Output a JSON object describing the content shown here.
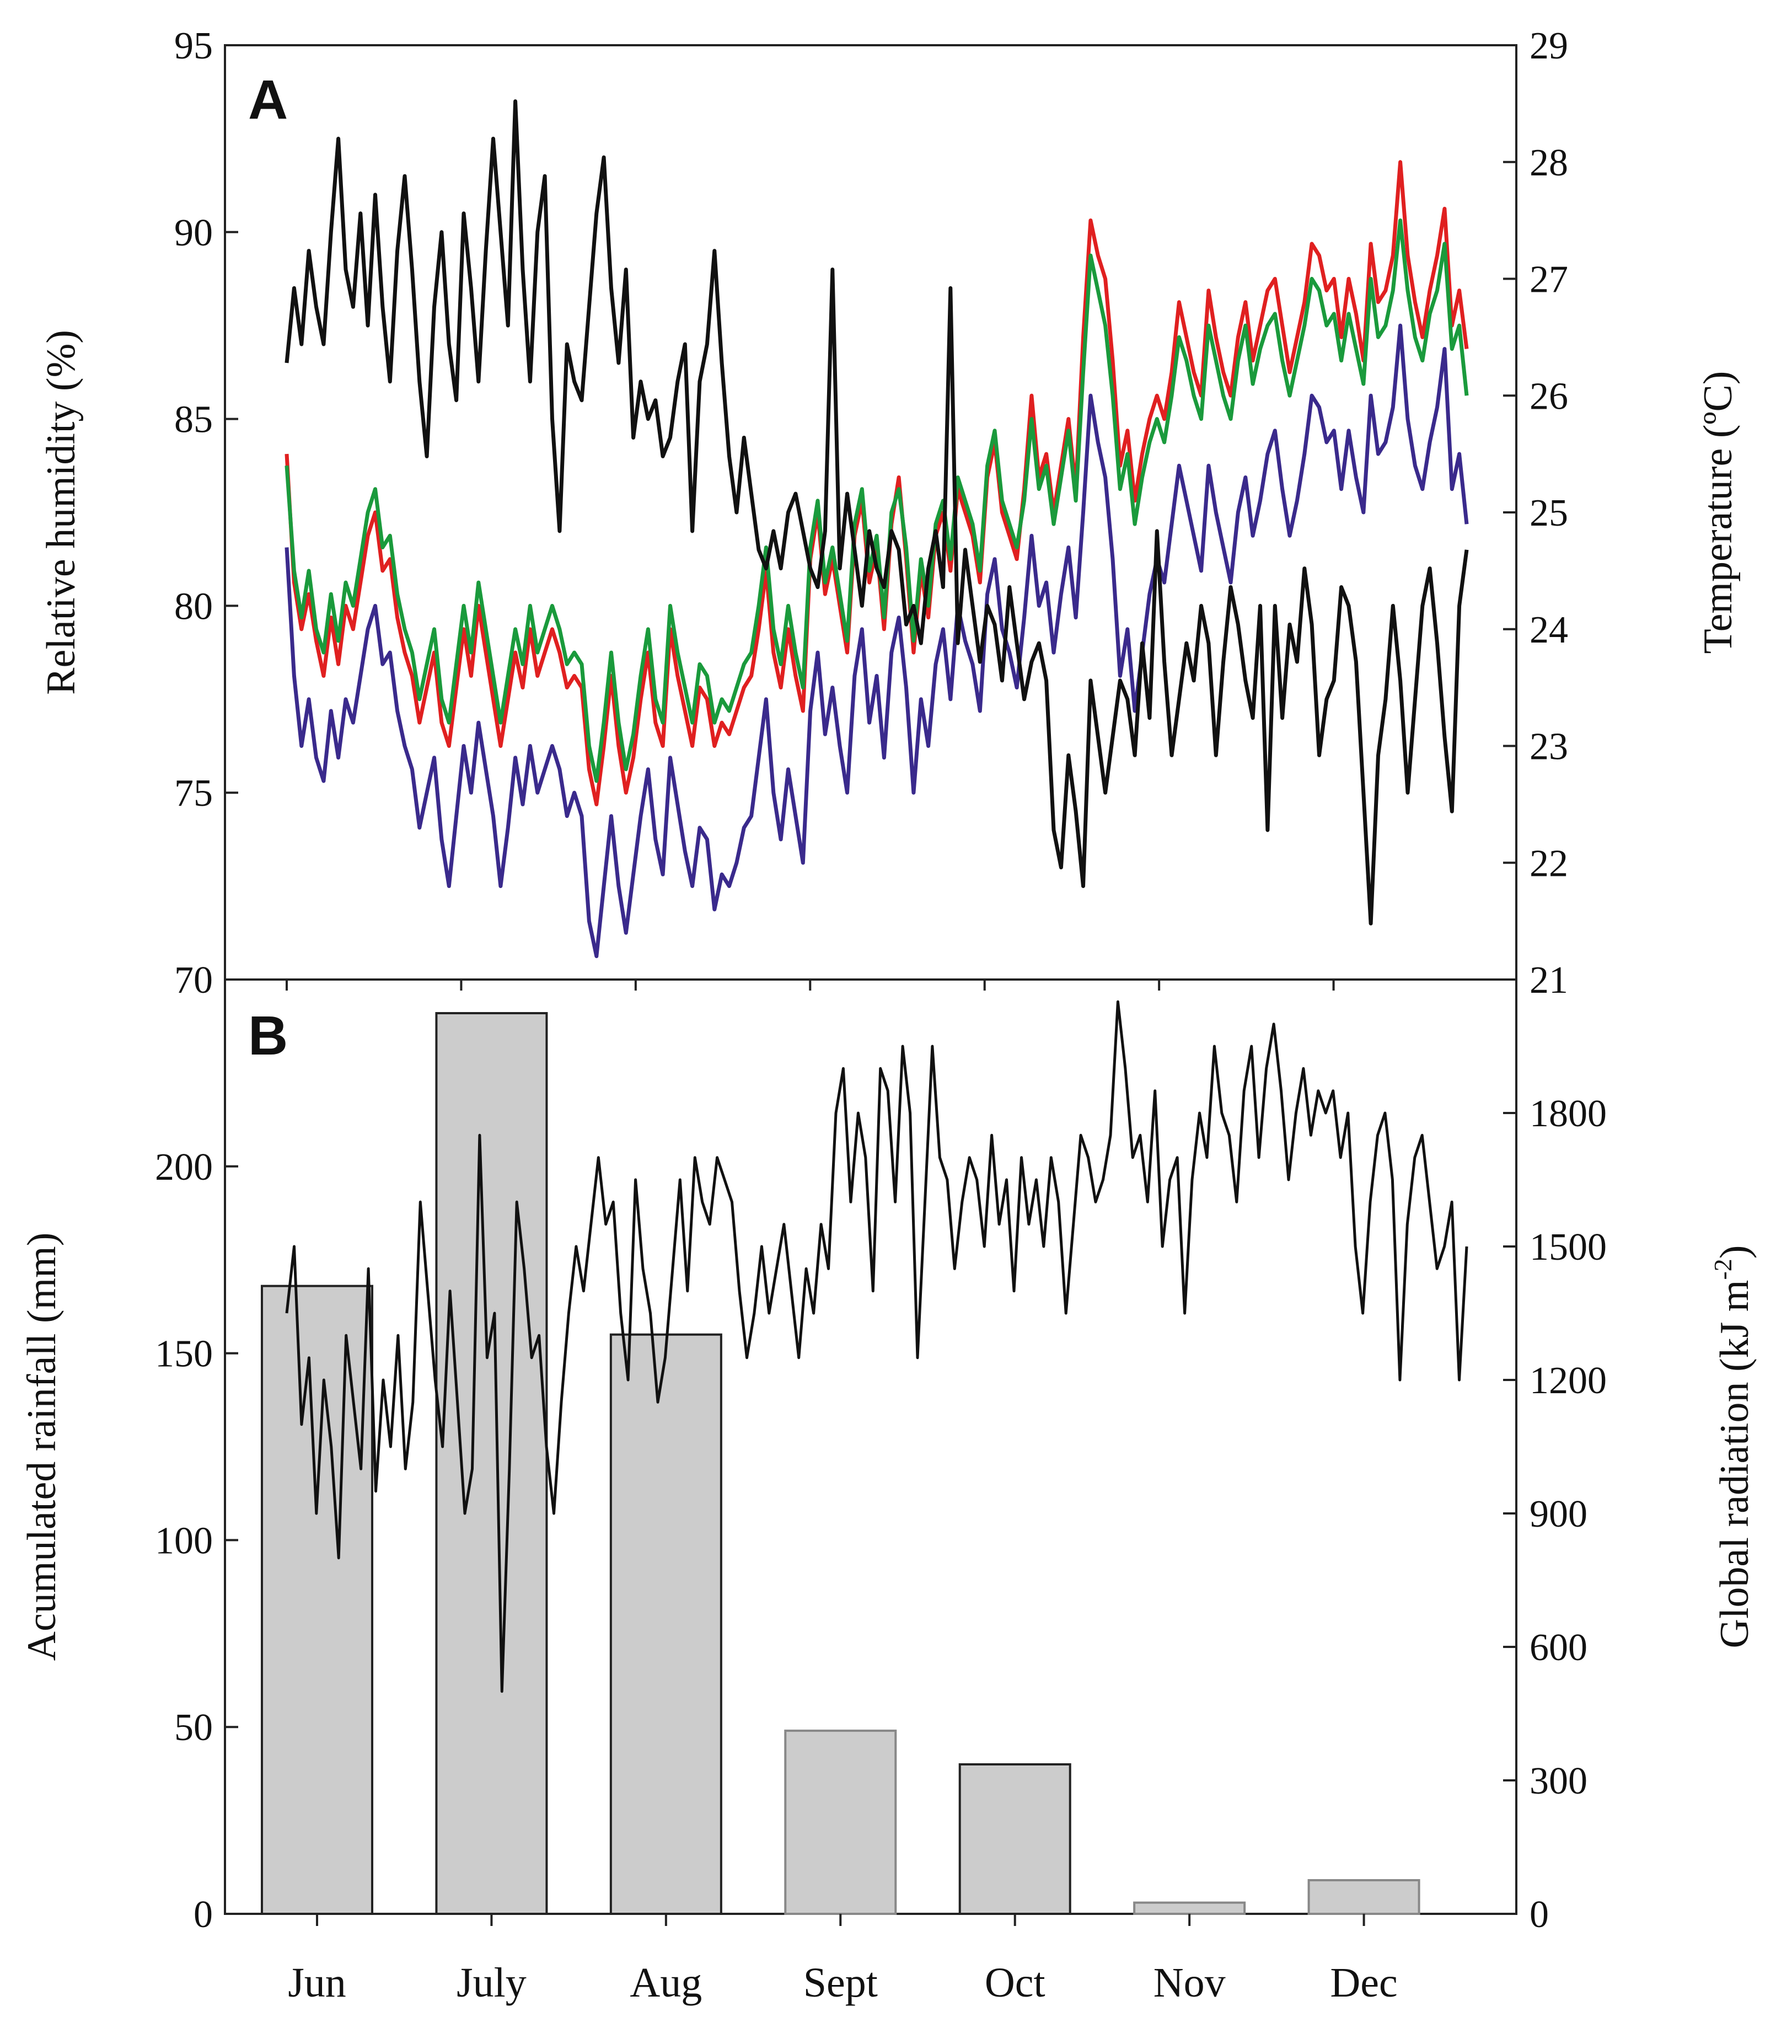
{
  "chart_data": [
    {
      "panel_label": "A",
      "type": "line",
      "ylabel_left": "Relative humidity (%)",
      "ylabel_right": "Temperature (ºC)",
      "ylim_left": [
        70,
        95
      ],
      "yticks_left": [
        "70",
        "75",
        "80",
        "85",
        "90",
        "95"
      ],
      "ylim_right": [
        21,
        29
      ],
      "yticks_right": [
        "21",
        "22",
        "23",
        "24",
        "25",
        "26",
        "27",
        "28",
        "29"
      ],
      "series": [
        {
          "name": "Relative humidity",
          "axis": "left",
          "color": "#111111",
          "values": [
            86.5,
            88.5,
            87.0,
            89.5,
            88.0,
            87.0,
            90.0,
            92.5,
            89.0,
            88.0,
            90.5,
            87.5,
            91.0,
            88.0,
            86.0,
            89.5,
            91.5,
            89.0,
            86.0,
            84.0,
            88.0,
            90.0,
            87.0,
            85.5,
            90.5,
            88.5,
            86.0,
            89.5,
            92.5,
            90.0,
            87.5,
            93.5,
            89.0,
            86.0,
            90.0,
            91.5,
            85.0,
            82.0,
            87.0,
            86.0,
            85.5,
            88.0,
            90.5,
            92.0,
            88.5,
            86.5,
            89.0,
            84.5,
            86.0,
            85.0,
            85.5,
            84.0,
            84.5,
            86.0,
            87.0,
            82.0,
            86.0,
            87.0,
            89.5,
            86.5,
            84.0,
            82.5,
            84.5,
            83.0,
            81.5,
            81.0,
            82.0,
            81.0,
            82.5,
            83.0,
            82.0,
            81.0,
            80.5,
            82.0,
            89.0,
            81.0,
            83.0,
            81.5,
            80.0,
            82.0,
            81.0,
            80.5,
            82.0,
            81.5,
            79.5,
            80.0,
            79.0,
            81.0,
            82.0,
            80.5,
            88.5,
            79.0,
            81.5,
            80.0,
            78.5,
            80.0,
            79.5,
            78.0,
            80.5,
            79.0,
            77.5,
            78.5,
            79.0,
            78.0,
            74.0,
            73.0,
            76.0,
            74.5,
            72.5,
            78.0,
            76.5,
            75.0,
            76.5,
            78.0,
            77.5,
            76.0,
            79.0,
            77.0,
            82.0,
            78.5,
            76.0,
            77.5,
            79.0,
            78.0,
            80.0,
            79.0,
            76.0,
            78.5,
            80.5,
            79.5,
            78.0,
            77.0,
            80.0,
            74.0,
            80.0,
            77.0,
            79.5,
            78.5,
            81.0,
            79.5,
            76.0,
            77.5,
            78.0,
            80.5,
            80.0,
            78.5,
            75.0,
            71.5,
            76.0,
            77.5,
            80.0,
            78.0,
            75.0,
            77.5,
            80.0,
            81.0,
            79.0,
            76.5,
            74.5,
            80.0,
            81.5
          ]
        },
        {
          "name": "Temperature (red)",
          "axis": "right",
          "color": "#e02020",
          "values": [
            25.5,
            24.4,
            24.0,
            24.3,
            23.9,
            23.6,
            24.1,
            23.7,
            24.2,
            24.0,
            24.4,
            24.8,
            25.0,
            24.5,
            24.6,
            24.1,
            23.8,
            23.6,
            23.2,
            23.5,
            23.8,
            23.2,
            23.0,
            23.5,
            24.0,
            23.6,
            24.2,
            23.8,
            23.4,
            23.0,
            23.4,
            23.8,
            23.5,
            24.0,
            23.6,
            23.8,
            24.0,
            23.8,
            23.5,
            23.6,
            23.5,
            22.8,
            22.5,
            23.0,
            23.6,
            23.0,
            22.6,
            22.9,
            23.4,
            23.8,
            23.2,
            23.0,
            24.0,
            23.6,
            23.3,
            23.0,
            23.5,
            23.4,
            23.0,
            23.2,
            23.1,
            23.3,
            23.5,
            23.6,
            24.0,
            24.5,
            23.8,
            23.5,
            24.0,
            23.6,
            23.3,
            24.6,
            25.0,
            24.3,
            24.6,
            24.2,
            23.8,
            24.8,
            25.1,
            24.4,
            24.7,
            24.0,
            24.9,
            25.3,
            24.6,
            23.8,
            24.5,
            24.1,
            24.8,
            25.0,
            24.5,
            25.2,
            25.0,
            24.8,
            24.4,
            25.3,
            25.6,
            25.0,
            24.8,
            24.6,
            25.2,
            26.0,
            25.3,
            25.5,
            25.0,
            25.4,
            25.8,
            25.2,
            26.5,
            27.5,
            27.2,
            27.0,
            26.3,
            25.4,
            25.7,
            25.1,
            25.5,
            25.8,
            26.0,
            25.8,
            26.2,
            26.8,
            26.5,
            26.2,
            26.0,
            26.9,
            26.5,
            26.2,
            26.0,
            26.5,
            26.8,
            26.3,
            26.6,
            26.9,
            27.0,
            26.6,
            26.2,
            26.5,
            26.8,
            27.3,
            27.2,
            26.9,
            27.0,
            26.5,
            27.0,
            26.7,
            26.3,
            27.3,
            26.8,
            26.9,
            27.2,
            28.0,
            27.2,
            26.8,
            26.5,
            26.9,
            27.2,
            27.6,
            26.6,
            26.9,
            26.4
          ]
        },
        {
          "name": "Temperature (green)",
          "axis": "right",
          "color": "#1a9a3c",
          "values": [
            25.4,
            24.5,
            24.1,
            24.5,
            24.0,
            23.8,
            24.3,
            23.9,
            24.4,
            24.2,
            24.6,
            25.0,
            25.2,
            24.7,
            24.8,
            24.3,
            24.0,
            23.8,
            23.4,
            23.7,
            24.0,
            23.4,
            23.2,
            23.7,
            24.2,
            23.8,
            24.4,
            24.0,
            23.6,
            23.2,
            23.6,
            24.0,
            23.7,
            24.2,
            23.8,
            24.0,
            24.2,
            24.0,
            23.7,
            23.8,
            23.7,
            23.0,
            22.7,
            23.2,
            23.8,
            23.2,
            22.8,
            23.1,
            23.6,
            24.0,
            23.4,
            23.2,
            24.2,
            23.8,
            23.5,
            23.2,
            23.7,
            23.6,
            23.2,
            23.4,
            23.3,
            23.5,
            23.7,
            23.8,
            24.2,
            24.7,
            24.0,
            23.7,
            24.2,
            23.8,
            23.5,
            24.7,
            25.1,
            24.4,
            24.7,
            24.3,
            23.9,
            24.9,
            25.2,
            24.5,
            24.8,
            24.1,
            25.0,
            25.2,
            24.7,
            23.9,
            24.6,
            24.2,
            24.9,
            25.1,
            24.6,
            25.3,
            25.1,
            24.9,
            24.5,
            25.4,
            25.7,
            25.1,
            24.9,
            24.7,
            25.1,
            25.8,
            25.2,
            25.4,
            24.9,
            25.3,
            25.7,
            25.1,
            26.2,
            27.2,
            26.9,
            26.6,
            26.0,
            25.2,
            25.5,
            24.9,
            25.3,
            25.6,
            25.8,
            25.6,
            26.0,
            26.5,
            26.3,
            26.0,
            25.8,
            26.6,
            26.3,
            26.0,
            25.8,
            26.3,
            26.6,
            26.1,
            26.4,
            26.6,
            26.7,
            26.3,
            26.0,
            26.3,
            26.6,
            27.0,
            26.9,
            26.6,
            26.7,
            26.3,
            26.7,
            26.4,
            26.1,
            27.0,
            26.5,
            26.6,
            26.9,
            27.5,
            26.9,
            26.5,
            26.3,
            26.7,
            26.9,
            27.3,
            26.4,
            26.6,
            26.0
          ]
        },
        {
          "name": "Temperature (blue)",
          "axis": "right",
          "color": "#3a2a8c",
          "values": [
            24.7,
            23.6,
            23.0,
            23.4,
            22.9,
            22.7,
            23.3,
            22.9,
            23.4,
            23.2,
            23.6,
            24.0,
            24.2,
            23.7,
            23.8,
            23.3,
            23.0,
            22.8,
            22.3,
            22.6,
            22.9,
            22.2,
            21.8,
            22.4,
            23.0,
            22.6,
            23.2,
            22.8,
            22.4,
            21.8,
            22.3,
            22.9,
            22.5,
            23.0,
            22.6,
            22.8,
            23.0,
            22.8,
            22.4,
            22.6,
            22.4,
            21.5,
            21.2,
            21.8,
            22.4,
            21.8,
            21.4,
            21.9,
            22.4,
            22.8,
            22.2,
            21.9,
            22.9,
            22.5,
            22.1,
            21.8,
            22.3,
            22.2,
            21.6,
            21.9,
            21.8,
            22.0,
            22.3,
            22.4,
            22.9,
            23.4,
            22.6,
            22.2,
            22.8,
            22.4,
            22.0,
            23.3,
            23.8,
            23.1,
            23.5,
            23.0,
            22.6,
            23.6,
            24.0,
            23.2,
            23.6,
            22.9,
            23.8,
            24.1,
            23.5,
            22.6,
            23.4,
            23.0,
            23.7,
            24.0,
            23.4,
            24.2,
            23.9,
            23.7,
            23.3,
            24.3,
            24.6,
            24.0,
            23.8,
            23.5,
            24.1,
            24.8,
            24.2,
            24.4,
            23.8,
            24.3,
            24.7,
            24.1,
            25.0,
            26.0,
            25.6,
            25.3,
            24.6,
            23.6,
            24.0,
            23.3,
            23.8,
            24.3,
            24.6,
            24.4,
            24.9,
            25.4,
            25.1,
            24.8,
            24.5,
            25.4,
            25.0,
            24.7,
            24.4,
            25.0,
            25.3,
            24.8,
            25.1,
            25.5,
            25.7,
            25.2,
            24.8,
            25.1,
            25.5,
            26.0,
            25.9,
            25.6,
            25.7,
            25.2,
            25.7,
            25.3,
            25.0,
            26.0,
            25.5,
            25.6,
            25.9,
            26.6,
            25.8,
            25.4,
            25.2,
            25.6,
            25.9,
            26.4,
            25.2,
            25.5,
            24.9
          ]
        }
      ]
    },
    {
      "panel_label": "B",
      "type": "bar",
      "ylabel_left": "Acumulated rainfall (mm)",
      "ylabel_right_main": "Global radiation (kJ m",
      "ylabel_right_sup": "-2",
      "ylabel_right_close": ")",
      "ylim_left": [
        0,
        250
      ],
      "yticks_left": [
        "0",
        "50",
        "100",
        "150",
        "200"
      ],
      "ylim_right": [
        0,
        2100
      ],
      "yticks_right": [
        "0",
        "300",
        "600",
        "900",
        "1200",
        "1500",
        "1800"
      ],
      "categories": [
        "Jun",
        "July",
        "Aug",
        "Sept",
        "Oct",
        "Nov",
        "Dec"
      ],
      "bars": {
        "name": "Accumulated rainfall",
        "color": "#cccccc",
        "values": [
          168,
          241,
          155,
          49,
          40,
          3,
          9
        ]
      },
      "line": {
        "name": "Global radiation",
        "axis": "right",
        "color": "#111111",
        "values": [
          1350,
          1500,
          1100,
          1250,
          900,
          1200,
          1050,
          800,
          1300,
          1150,
          1000,
          1450,
          950,
          1200,
          1050,
          1300,
          1000,
          1150,
          1600,
          1400,
          1200,
          1050,
          1400,
          1150,
          900,
          1000,
          1750,
          1250,
          1350,
          500,
          1000,
          1600,
          1450,
          1250,
          1300,
          1050,
          900,
          1150,
          1350,
          1500,
          1400,
          1550,
          1700,
          1550,
          1600,
          1350,
          1200,
          1650,
          1450,
          1350,
          1150,
          1250,
          1450,
          1650,
          1400,
          1700,
          1600,
          1550,
          1700,
          1650,
          1600,
          1400,
          1250,
          1350,
          1500,
          1350,
          1450,
          1550,
          1400,
          1250,
          1450,
          1350,
          1550,
          1450,
          1800,
          1900,
          1600,
          1800,
          1700,
          1400,
          1900,
          1850,
          1600,
          1950,
          1800,
          1250,
          1600,
          1950,
          1700,
          1650,
          1450,
          1600,
          1700,
          1650,
          1500,
          1750,
          1550,
          1650,
          1400,
          1700,
          1550,
          1650,
          1500,
          1700,
          1600,
          1350,
          1550,
          1750,
          1700,
          1600,
          1650,
          1750,
          2050,
          1900,
          1700,
          1750,
          1600,
          1850,
          1500,
          1650,
          1700,
          1350,
          1650,
          1800,
          1700,
          1950,
          1800,
          1750,
          1600,
          1850,
          1950,
          1700,
          1900,
          2000,
          1850,
          1650,
          1800,
          1900,
          1750,
          1850,
          1800,
          1850,
          1700,
          1800,
          1500,
          1350,
          1600,
          1750,
          1800,
          1650,
          1200,
          1550,
          1700,
          1750,
          1600,
          1450,
          1500,
          1600,
          1200,
          1500
        ]
      }
    }
  ]
}
